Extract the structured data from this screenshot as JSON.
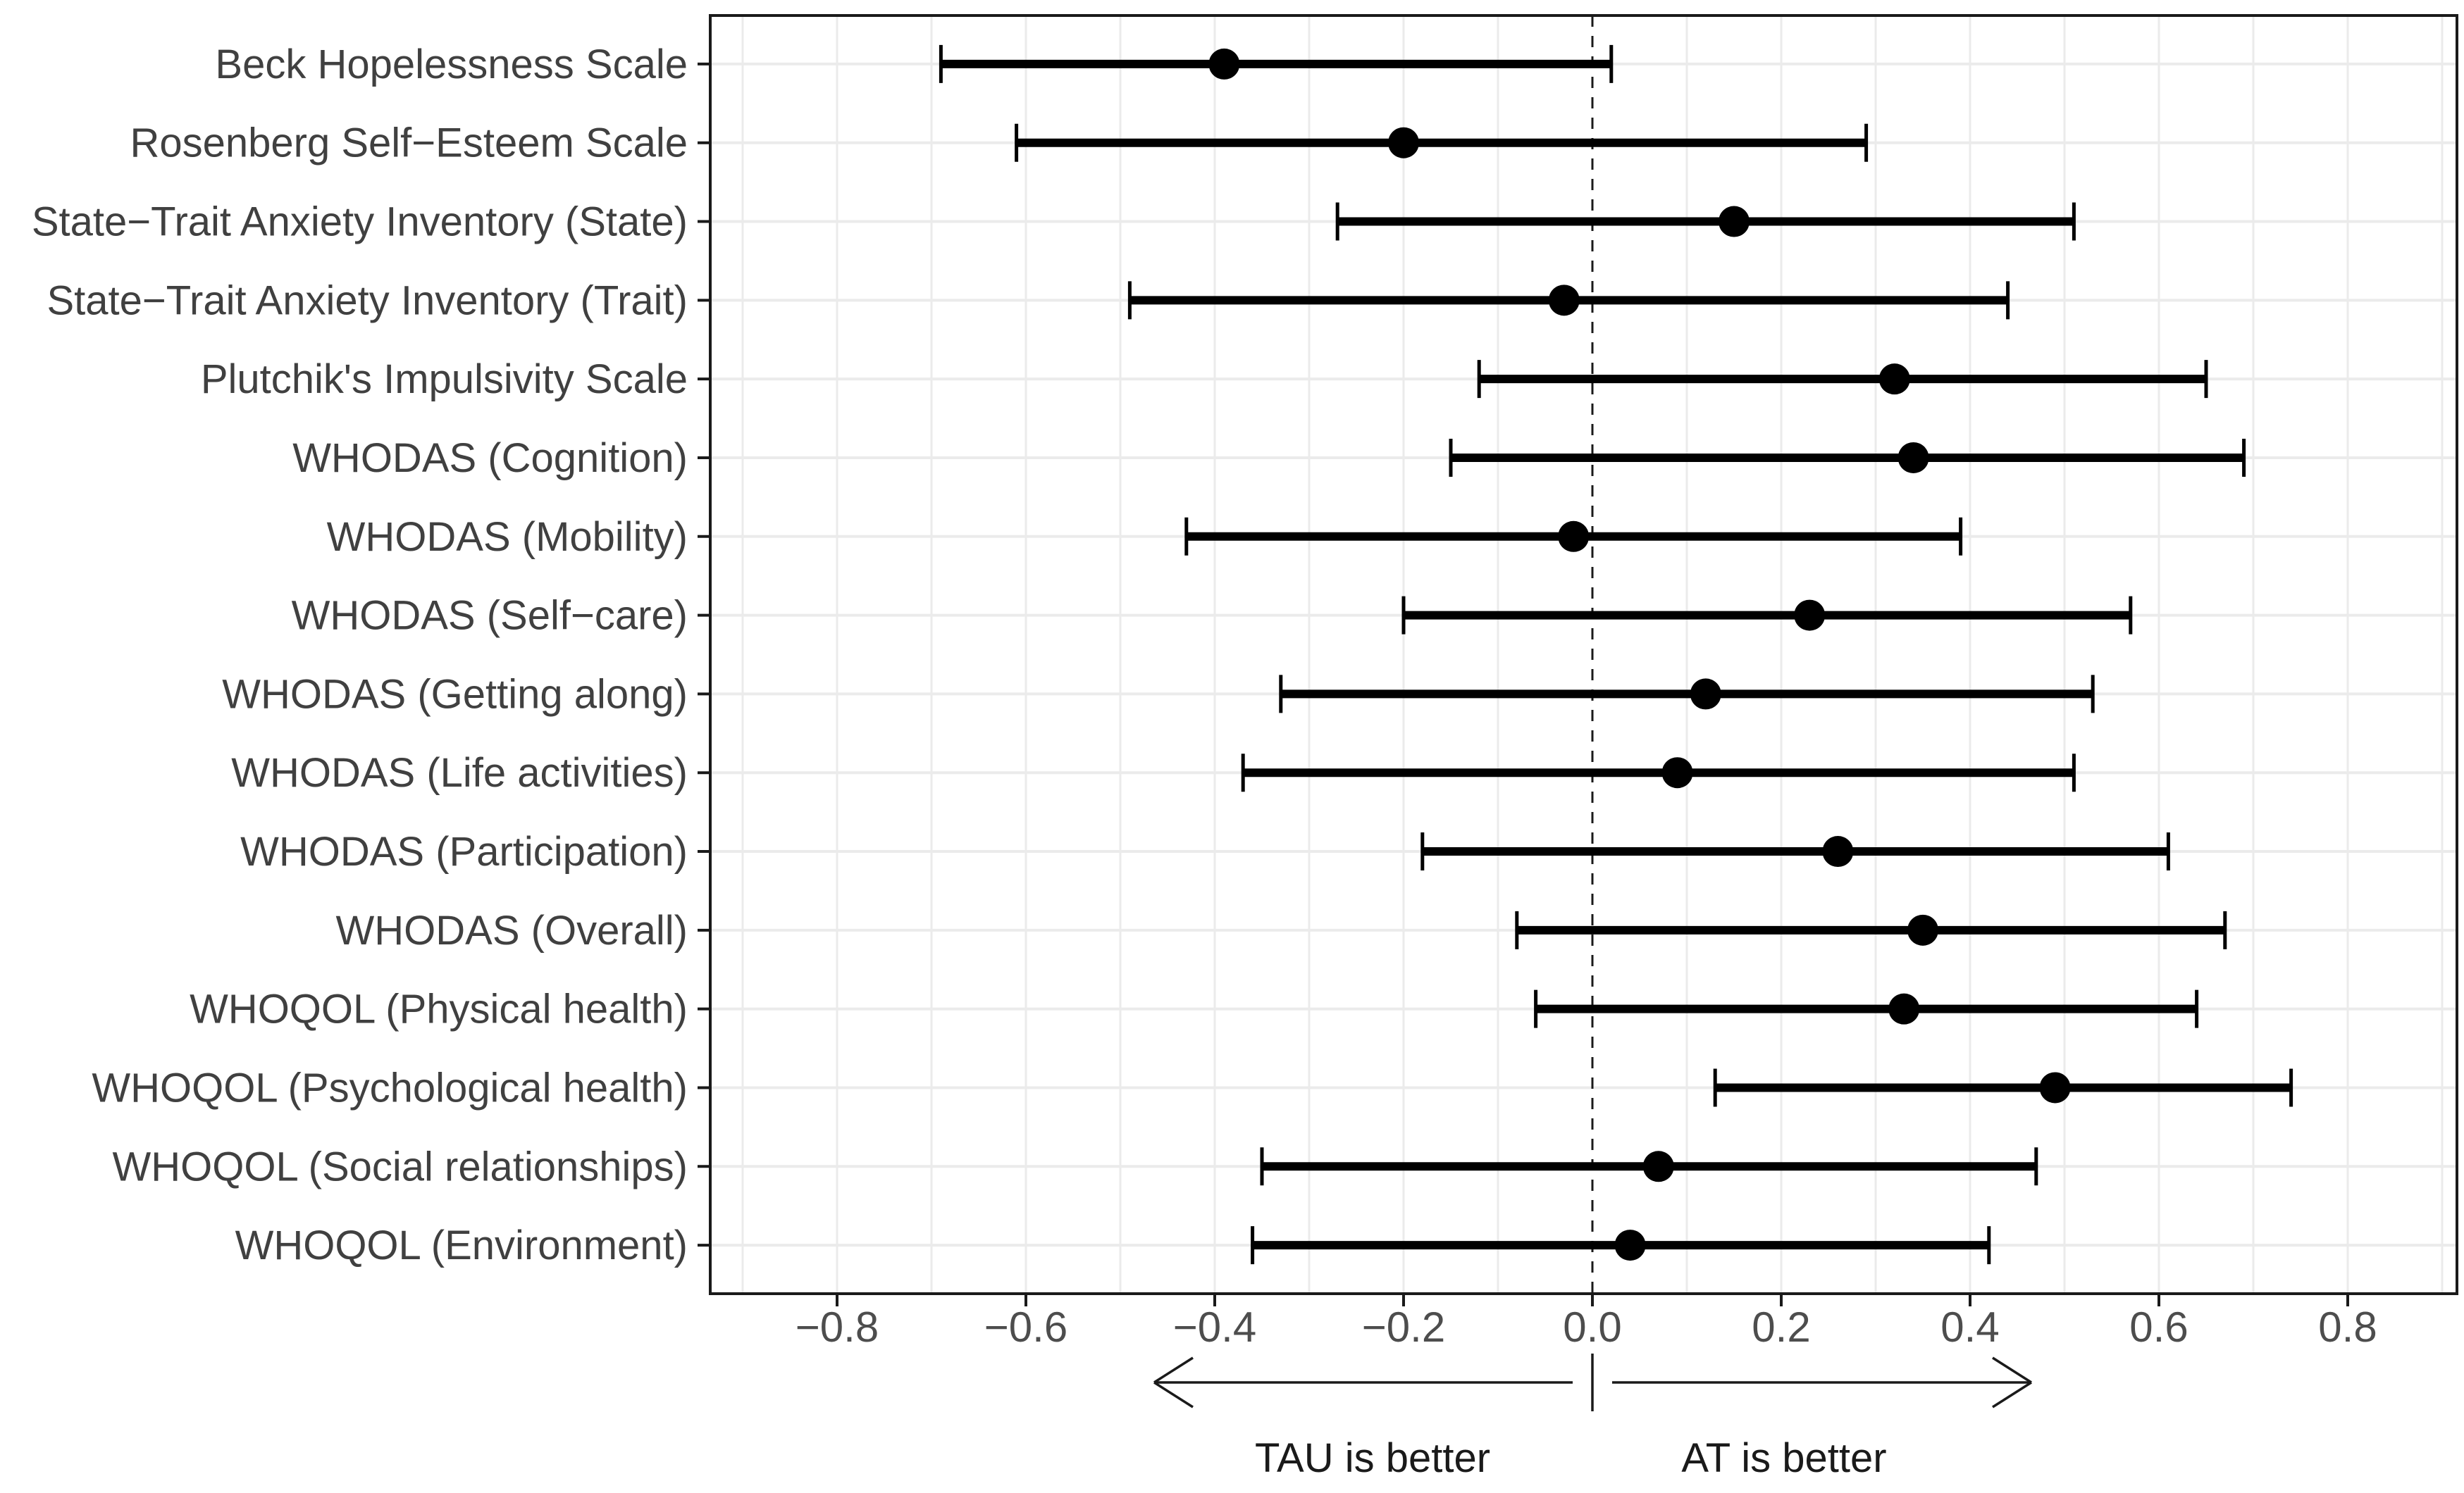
{
  "figure": {
    "background": "#ffffff",
    "title": ""
  },
  "colors": {
    "panel_border": "#1a1a1a",
    "grid": "#ebebeb",
    "zero_line": "#1a1a1a",
    "data": "#000000",
    "axis_text": "#4d4d4d",
    "y_label_text": "#404040",
    "annotation_text": "#1a1a1a"
  },
  "chart_data": {
    "type": "scatter",
    "subtype": "forest-plot",
    "title": "",
    "xlabel": "",
    "ylabel": "",
    "xlim": [
      -0.934,
      0.916
    ],
    "grid": "on",
    "legend": "none",
    "zero_reference_line": 0.0,
    "x_ticks": [
      -0.8,
      -0.6,
      -0.4,
      -0.2,
      0.0,
      0.2,
      0.4,
      0.6,
      0.8
    ],
    "x_tick_labels": [
      "−0.8",
      "−0.6",
      "−0.4",
      "−0.2",
      "0.0",
      "0.2",
      "0.4",
      "0.6",
      "0.8"
    ],
    "minor_grid_step": 0.1,
    "rows": [
      {
        "label": "Beck Hopelessness Scale",
        "estimate": -0.39,
        "ci_lower": -0.69,
        "ci_upper": 0.02
      },
      {
        "label": "Rosenberg Self−Esteem Scale",
        "estimate": -0.2,
        "ci_lower": -0.61,
        "ci_upper": 0.29
      },
      {
        "label": "State−Trait Anxiety Inventory (State)",
        "estimate": 0.15,
        "ci_lower": -0.27,
        "ci_upper": 0.51
      },
      {
        "label": "State−Trait Anxiety Inventory (Trait)",
        "estimate": -0.03,
        "ci_lower": -0.49,
        "ci_upper": 0.44
      },
      {
        "label": "Plutchik's Impulsivity Scale",
        "estimate": 0.32,
        "ci_lower": -0.12,
        "ci_upper": 0.65
      },
      {
        "label": "WHODAS (Cognition)",
        "estimate": 0.34,
        "ci_lower": -0.15,
        "ci_upper": 0.69
      },
      {
        "label": "WHODAS (Mobility)",
        "estimate": -0.02,
        "ci_lower": -0.43,
        "ci_upper": 0.39
      },
      {
        "label": "WHODAS (Self−care)",
        "estimate": 0.23,
        "ci_lower": -0.2,
        "ci_upper": 0.57
      },
      {
        "label": "WHODAS (Getting along)",
        "estimate": 0.12,
        "ci_lower": -0.33,
        "ci_upper": 0.53
      },
      {
        "label": "WHODAS (Life activities)",
        "estimate": 0.09,
        "ci_lower": -0.37,
        "ci_upper": 0.51
      },
      {
        "label": "WHODAS (Participation)",
        "estimate": 0.26,
        "ci_lower": -0.18,
        "ci_upper": 0.61
      },
      {
        "label": "WHODAS (Overall)",
        "estimate": 0.35,
        "ci_lower": -0.08,
        "ci_upper": 0.67
      },
      {
        "label": "WHOQOL (Physical health)",
        "estimate": 0.33,
        "ci_lower": -0.06,
        "ci_upper": 0.64
      },
      {
        "label": "WHOQOL (Psychological health)",
        "estimate": 0.49,
        "ci_lower": 0.13,
        "ci_upper": 0.74
      },
      {
        "label": "WHOQOL (Social relationships)",
        "estimate": 0.07,
        "ci_lower": -0.35,
        "ci_upper": 0.47
      },
      {
        "label": "WHOQOL (Environment)",
        "estimate": 0.04,
        "ci_lower": -0.36,
        "ci_upper": 0.42
      }
    ],
    "direction_labels": {
      "left": "TAU is better",
      "right": "AT is better"
    }
  }
}
